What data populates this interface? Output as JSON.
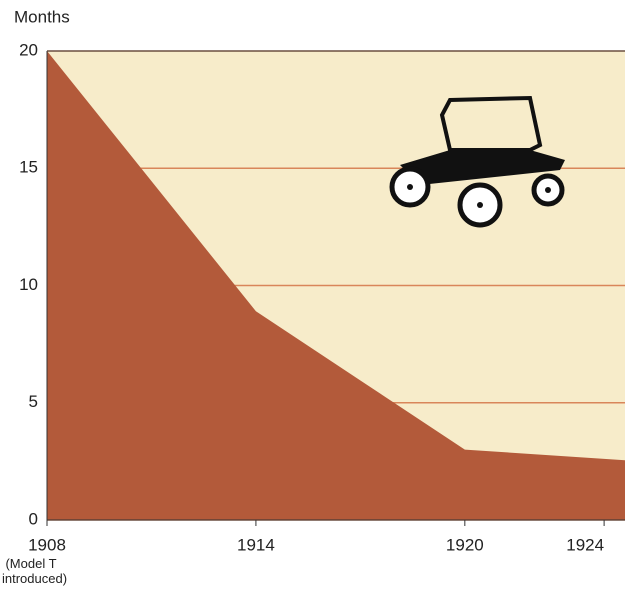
{
  "chart_data": {
    "type": "area",
    "y_label": "Months",
    "annotation": "(Model T introduced)",
    "x": [
      1908,
      1914,
      1920,
      1924.6
    ],
    "values": [
      20,
      8.9,
      3,
      2.55
    ],
    "color": "#b35a3a",
    "background": "#f7ecca",
    "grid_color": "#d9865a",
    "xlim": [
      1908,
      1924.6
    ],
    "xticks": [
      1908,
      1914,
      1920,
      1924
    ],
    "ylim": [
      0,
      20
    ],
    "yticks": [
      0,
      5,
      10,
      15,
      20
    ],
    "grid": true
  }
}
